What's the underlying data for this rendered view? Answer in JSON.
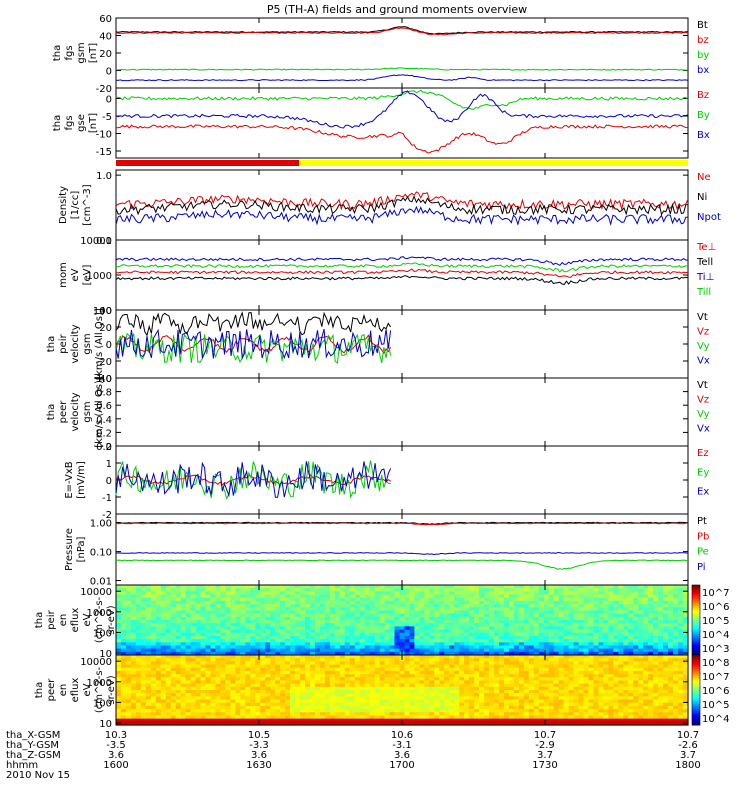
{
  "title": "P5 (TH-A) fields and ground moments overview",
  "colors": {
    "black": "#000000",
    "red": "#e00000",
    "green": "#00cc00",
    "blue": "#0000cc",
    "yellow": "#ffff00"
  },
  "chart_data": [
    {
      "type": "line",
      "ylabel": [
        "tha",
        "fgs",
        "gsm",
        "[nT]"
      ],
      "ylim": [
        -20,
        60
      ],
      "yticks": [
        -20,
        0,
        20,
        40,
        60
      ],
      "series": [
        {
          "name": "Bt",
          "color": "black",
          "base": 44
        },
        {
          "name": "bz",
          "color": "red",
          "base": 43
        },
        {
          "name": "by",
          "color": "green",
          "base": 1
        },
        {
          "name": "bx",
          "color": "blue",
          "base": -11
        }
      ]
    },
    {
      "type": "line",
      "ylabel": [
        "tha",
        "fgs",
        "gse",
        "[nT]"
      ],
      "ylim": [
        -17,
        3
      ],
      "yticks": [
        -15,
        -10,
        -5,
        0
      ],
      "series": [
        {
          "name": "Bz",
          "color": "red",
          "base": -8
        },
        {
          "name": "By",
          "color": "green",
          "base": 0
        },
        {
          "name": "Bx",
          "color": "blue",
          "base": -5
        }
      ]
    },
    {
      "type": "line",
      "ylabel": [
        "Density",
        "[1/cc]",
        "[cm^-3]"
      ],
      "log": true,
      "ylim": [
        0.1,
        1.2
      ],
      "yticks": [
        0.1,
        1.0
      ],
      "yticklabels": [
        "0.1",
        "1.0"
      ],
      "series": [
        {
          "name": "Ne",
          "color": "red",
          "base": 0.36
        },
        {
          "name": "Ni",
          "color": "black",
          "base": 0.3
        },
        {
          "name": "Npot",
          "color": "blue",
          "base": 0.21
        }
      ]
    },
    {
      "type": "line",
      "ylabel": [
        "mom",
        "eV",
        "[eV]"
      ],
      "log": true,
      "ylim": [
        100,
        10000
      ],
      "yticks": [
        100,
        1000,
        10000
      ],
      "yticklabels": [
        "100",
        "1000",
        "10000"
      ],
      "series": [
        {
          "name": "Te⊥",
          "color": "red",
          "base": 1200
        },
        {
          "name": "Tell",
          "color": "black",
          "base": 800
        },
        {
          "name": "Ti⊥",
          "color": "blue",
          "base": 2800
        },
        {
          "name": "Till",
          "color": "green",
          "base": 1800
        }
      ]
    },
    {
      "type": "line",
      "ylabel": [
        "tha",
        "peir",
        "velocity",
        "gsm",
        "[km/s (All Qs)]"
      ],
      "ylim": [
        -40,
        40
      ],
      "yticks": [
        -40,
        -20,
        0,
        20,
        40
      ],
      "xlim_frac": 0.48,
      "series": [
        {
          "name": "Vt",
          "color": "black",
          "base": 15
        },
        {
          "name": "Vz",
          "color": "red",
          "base": 0
        },
        {
          "name": "Vy",
          "color": "green",
          "base": -5
        },
        {
          "name": "Vx",
          "color": "blue",
          "base": 0
        }
      ]
    },
    {
      "type": "line",
      "ylabel": [
        "tha",
        "peer",
        "velocity",
        "gsm",
        "[km/s (All Qs)]"
      ],
      "ylim": [
        0,
        1
      ],
      "yticks": [
        0,
        0.2,
        0.4,
        0.6,
        0.8,
        1.0
      ],
      "yticklabels": [
        "0.0",
        "0.2",
        "0.4",
        "0.6",
        "0.8",
        "1.0"
      ],
      "series": [
        {
          "name": "Vt",
          "color": "black",
          "base": null
        },
        {
          "name": "Vz",
          "color": "red",
          "base": null
        },
        {
          "name": "Vy",
          "color": "green",
          "base": null
        },
        {
          "name": "Vx",
          "color": "blue",
          "base": null
        }
      ]
    },
    {
      "type": "line",
      "ylabel": [
        "E=-VxB",
        "[mV/m]"
      ],
      "ylim": [
        -2,
        2
      ],
      "yticks": [
        -2,
        -1,
        0,
        1,
        2
      ],
      "xlim_frac": 0.48,
      "series": [
        {
          "name": "Ez",
          "color": "red",
          "base": 0
        },
        {
          "name": "Ey",
          "color": "green",
          "base": 0
        },
        {
          "name": "Ex",
          "color": "blue",
          "base": 0
        }
      ]
    },
    {
      "type": "line",
      "ylabel": [
        "Pressure",
        "[nPa]"
      ],
      "log": true,
      "ylim": [
        0.007,
        2
      ],
      "yticks": [
        0.01,
        0.1,
        1
      ],
      "yticklabels": [
        "0.01",
        "0.10",
        "1.00"
      ],
      "series": [
        {
          "name": "Pt",
          "color": "black",
          "base": 1.0
        },
        {
          "name": "Pb",
          "color": "red",
          "base": 0.95
        },
        {
          "name": "Pe",
          "color": "green",
          "base": 0.05
        },
        {
          "name": "Pi",
          "color": "blue",
          "base": 0.09
        }
      ]
    },
    {
      "type": "heatmap",
      "ylabel": [
        "tha",
        "peir",
        "en",
        "eflux",
        "eV",
        "(cm^2-s-",
        "sr-eV)"
      ],
      "log": true,
      "ylim": [
        8,
        20000
      ],
      "yticks": [
        10,
        100,
        1000,
        10000
      ],
      "yticklabels": [
        "10",
        "100",
        "1000",
        "10000"
      ],
      "colorbar": {
        "ticks": [
          "10^3",
          "10^4",
          "10^5",
          "10^6",
          "10^7"
        ]
      }
    },
    {
      "type": "heatmap",
      "ylabel": [
        "tha",
        "peer",
        "en",
        "eflux",
        "eV",
        "(cm^2-s-",
        "sr-eV)"
      ],
      "log": true,
      "ylim": [
        8,
        20000
      ],
      "yticks": [
        10,
        100,
        1000,
        10000
      ],
      "yticklabels": [
        "10",
        "100",
        "1000",
        "10000"
      ],
      "colorbar": {
        "ticks": [
          "10^4",
          "10^5",
          "10^6",
          "10^7",
          "10^8"
        ]
      }
    }
  ],
  "xaxis": {
    "rows": [
      {
        "label": "tha_X-GSM",
        "values": [
          "10.3",
          "10.5",
          "10.6",
          "10.7",
          "10.7"
        ]
      },
      {
        "label": "tha_Y-GSM",
        "values": [
          "-3.5",
          "-3.3",
          "-3.1",
          "-2.9",
          "-2.6"
        ]
      },
      {
        "label": "tha_Z-GSM",
        "values": [
          "3.6",
          "3.6",
          "3.6",
          "3.7",
          "3.7"
        ]
      },
      {
        "label": "hhmm",
        "values": [
          "1600",
          "1630",
          "1700",
          "1730",
          "1800"
        ]
      }
    ],
    "date": "2010 Nov 15"
  }
}
